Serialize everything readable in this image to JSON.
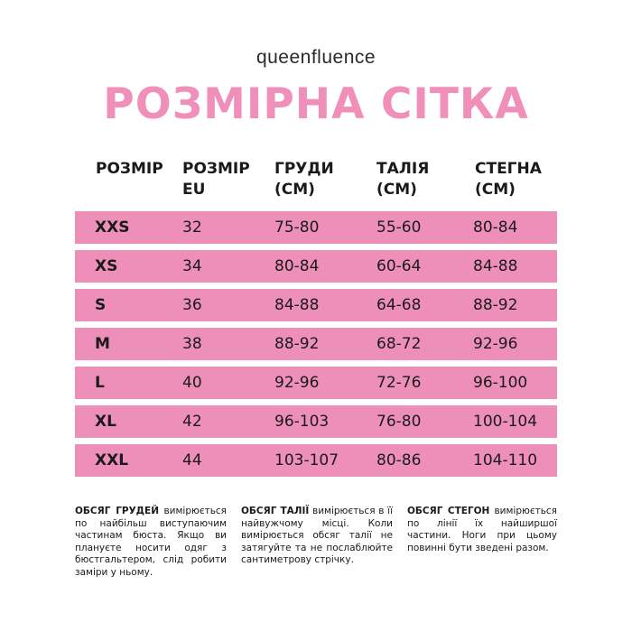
{
  "brand": "queenfluence",
  "title": "РОЗМІРНА СІТКА",
  "headers": [
    "РОЗМІР",
    "РОЗМІР\nEU",
    "ГРУДИ\n(СМ)",
    "ТАЛІЯ\n(СМ)",
    "СТЕГНА\n(СМ)"
  ],
  "rows": [
    {
      "size": "XXS",
      "eu": "32",
      "chest": "75-80",
      "waist": "55-60",
      "hips": "80-84"
    },
    {
      "size": "XS",
      "eu": "34",
      "chest": "80-84",
      "waist": "60-64",
      "hips": "84-88"
    },
    {
      "size": "S",
      "eu": "36",
      "chest": "84-88",
      "waist": "64-68",
      "hips": "88-92"
    },
    {
      "size": "M",
      "eu": "38",
      "chest": "88-92",
      "waist": "68-72",
      "hips": "92-96"
    },
    {
      "size": "L",
      "eu": "40",
      "chest": "92-96",
      "waist": "72-76",
      "hips": "96-100"
    },
    {
      "size": "XL",
      "eu": "42",
      "chest": "96-103",
      "waist": "76-80",
      "hips": "100-104"
    },
    {
      "size": "XXL",
      "eu": "44",
      "chest": "103-107",
      "waist": "80-86",
      "hips": "104-110"
    }
  ],
  "notes": [
    {
      "term": "ОБСЯГ ГРУДЕЙ",
      "text": " вимірюється по найбільш виступаючим частинам бюста. Якщо ви плануєте носити одяг з бюстгальтером, слід робити заміри у ньому."
    },
    {
      "term": "ОБСЯГ ТАЛІЇ",
      "text": " вимірюється в її найвужчому місці. Коли вимірюється обсяг талії не затягуйте та не послаблюйте сантиметрову стрічку."
    },
    {
      "term": "ОБСЯГ СТЕГОН",
      "text": " вимірюється по лінії їх найширшої частини. Ноги при цьому повинні бути зведені разом."
    }
  ],
  "colors": {
    "accent": "#ee8fba",
    "title": "#ef8fba",
    "text": "#1a1a1a"
  }
}
